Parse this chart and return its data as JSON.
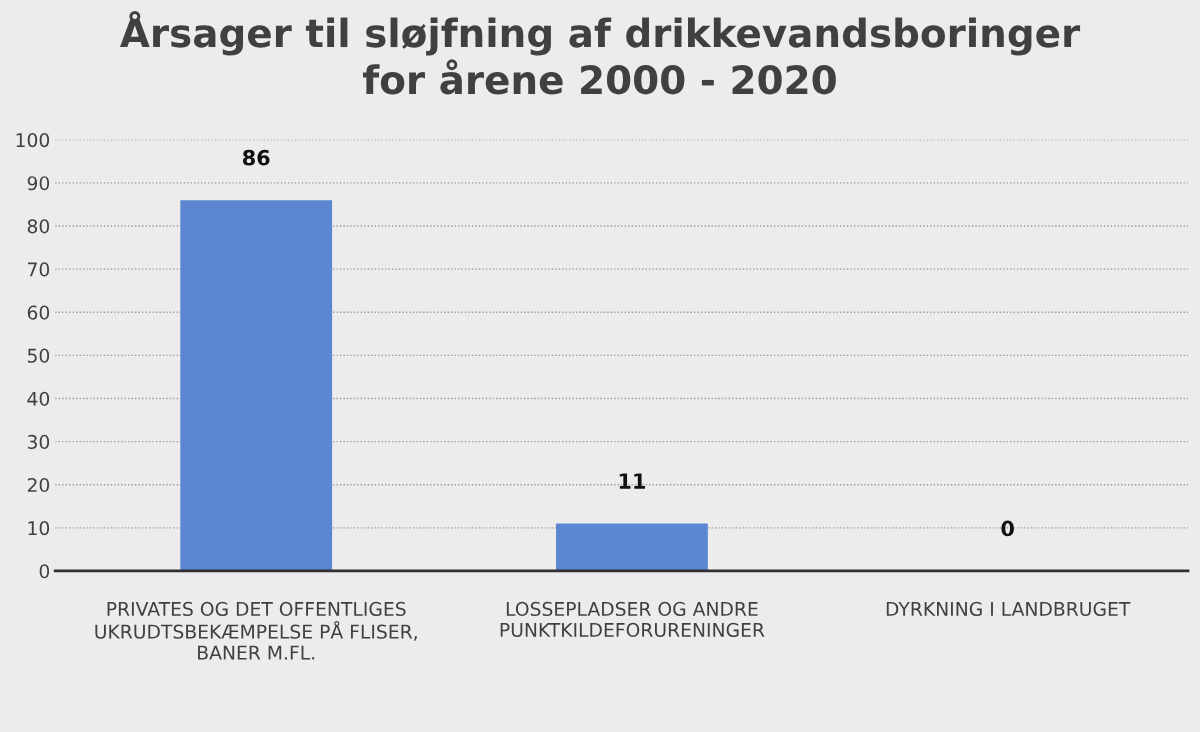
{
  "chart_data": {
    "type": "bar",
    "title": "Årsager til sløjfning af drikkevandsboringer\nfor årene 2000 - 2020",
    "categories": [
      "PRIVATES OG DET OFFENTLIGES\nUKRUDTSBEKÆMPELSE PÅ FLISER,\nBANER M.FL.",
      "LOSSEPLADSER OG ANDRE\nPUNKTKILDEFORURENINGER",
      "DYRKNING I LANDBRUGET"
    ],
    "values": [
      86,
      11,
      0
    ],
    "color": "#5b87d2",
    "ylim": [
      0,
      100
    ],
    "yticks": [
      0,
      10,
      20,
      30,
      40,
      50,
      60,
      70,
      80,
      90,
      100
    ],
    "grid": "y",
    "data_labels": true
  }
}
